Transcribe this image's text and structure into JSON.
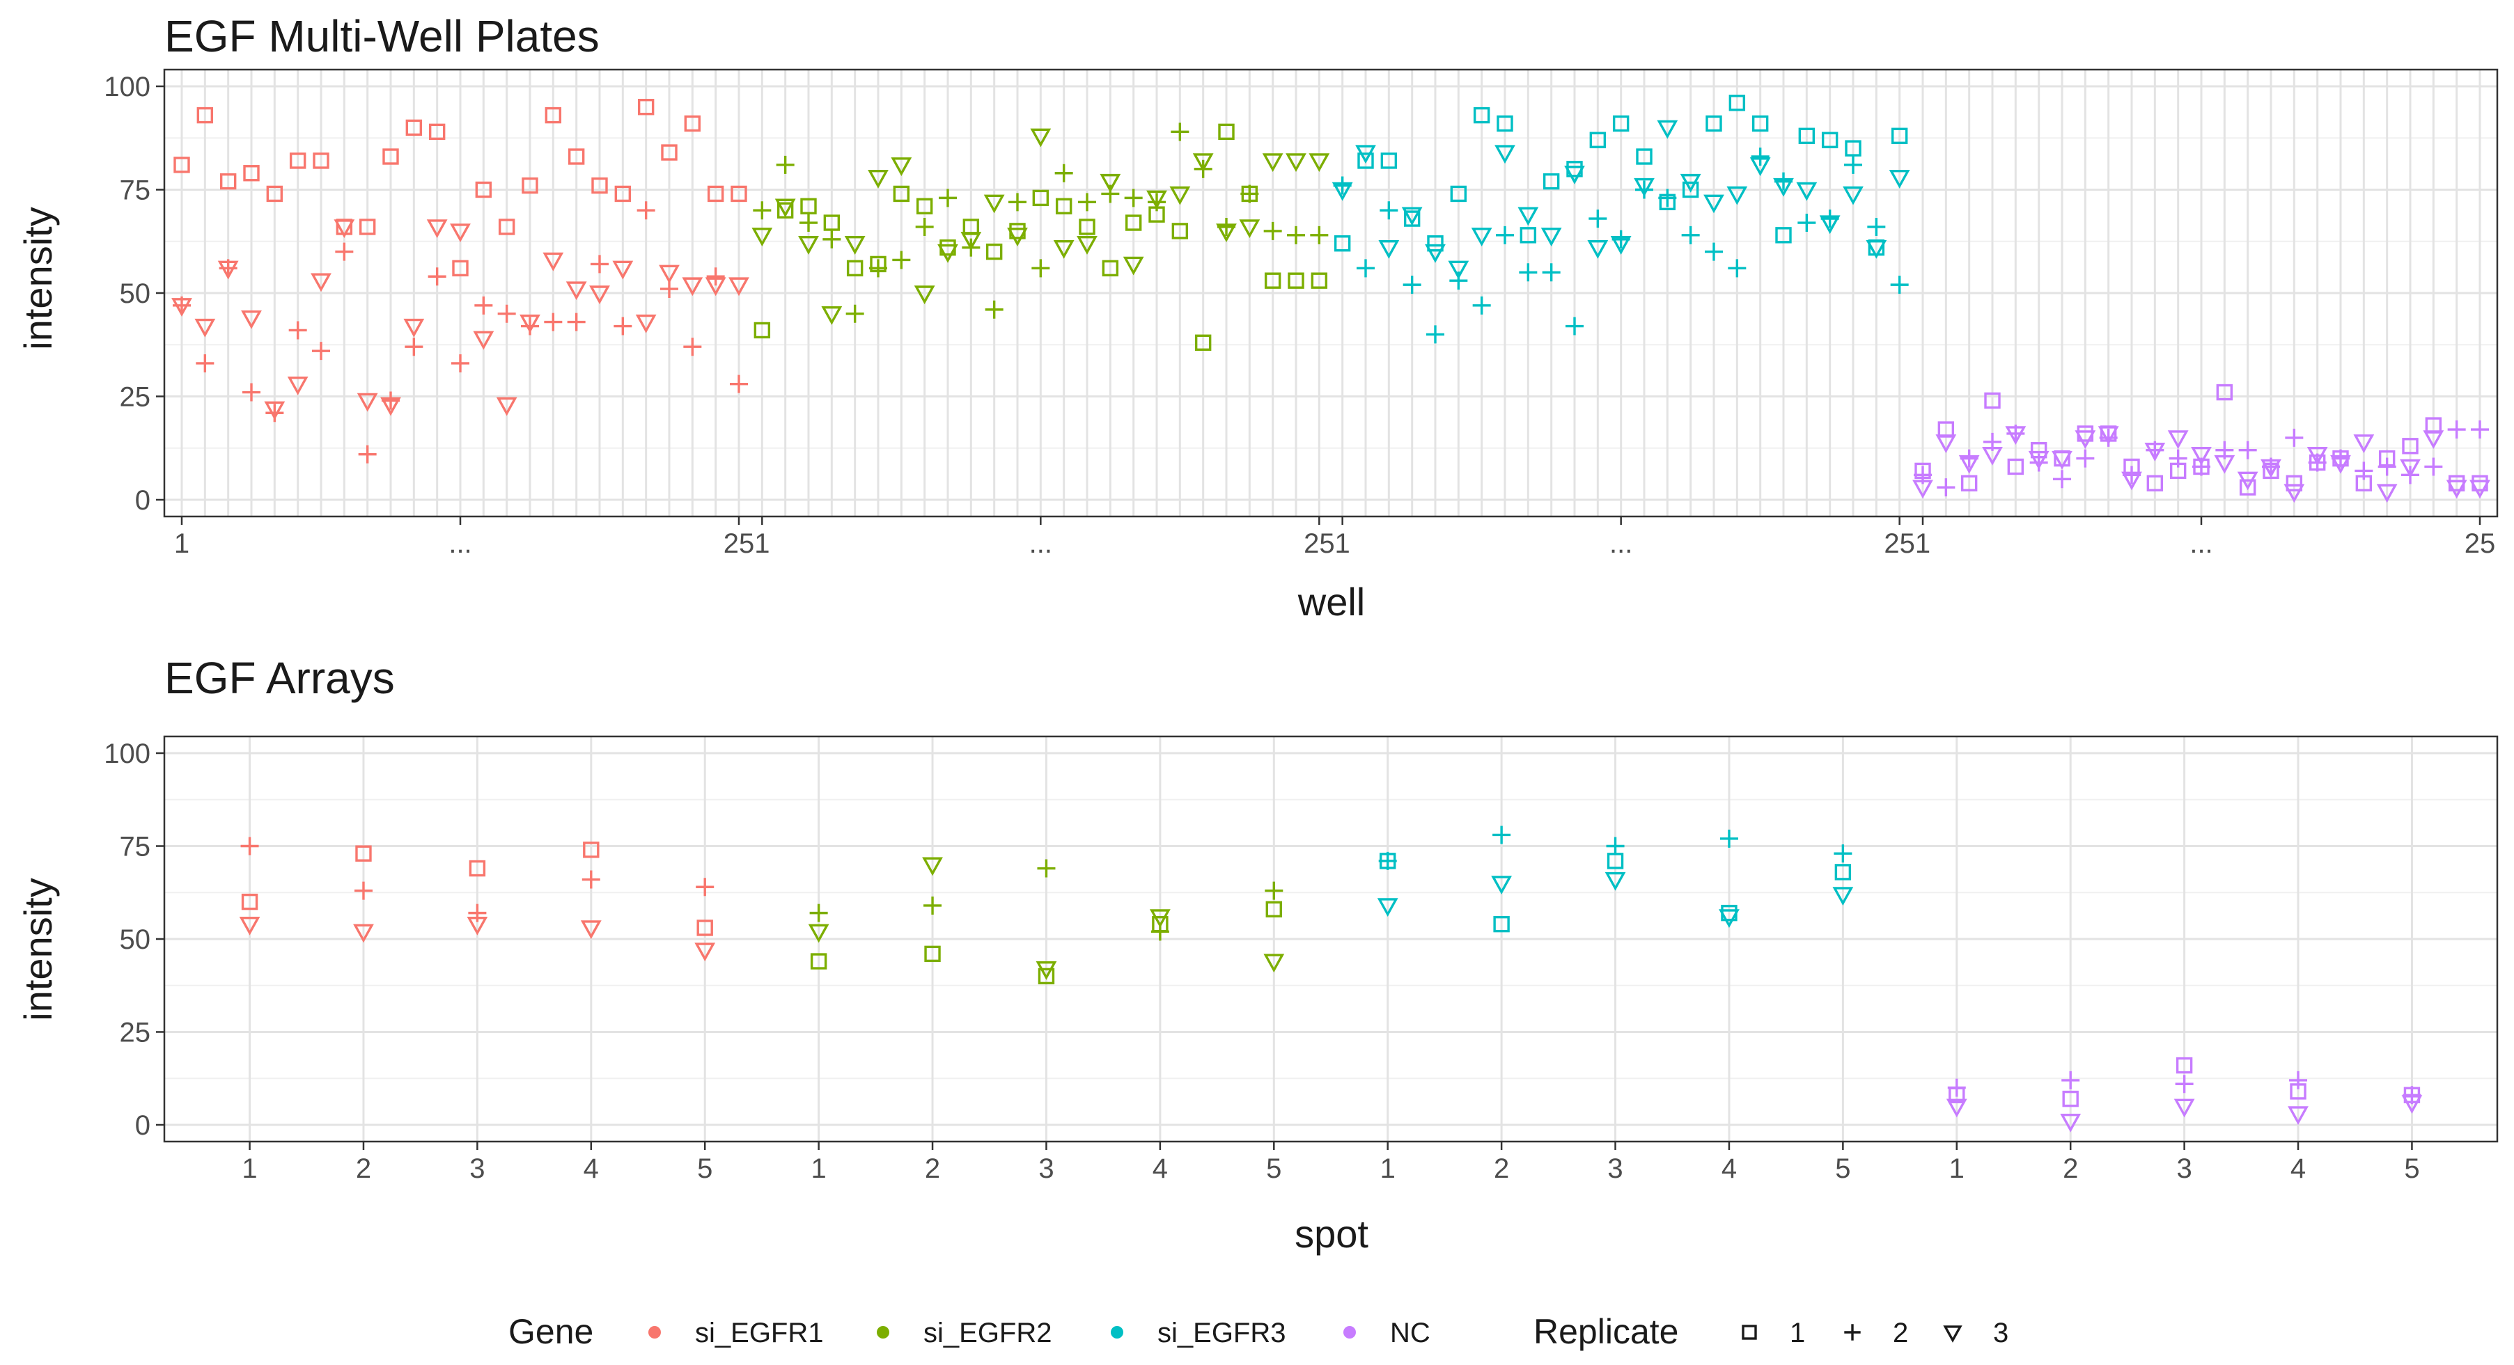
{
  "colors": {
    "si_EGFR1": "#F8766D",
    "si_EGFR2": "#7CAE00",
    "si_EGFR3": "#00BFC4",
    "NC": "#C77CFF"
  },
  "legend": {
    "gene_title": "Gene",
    "genes": [
      "si_EGFR1",
      "si_EGFR2",
      "si_EGFR3",
      "NC"
    ],
    "replicate_title": "Replicate",
    "replicates": [
      "1",
      "2",
      "3"
    ],
    "shapes": [
      "square-icon",
      "plus-icon",
      "triangle-down-icon"
    ]
  },
  "chart_data": [
    {
      "type": "scatter",
      "title": "EGF Multi-Well Plates",
      "xlabel": "well",
      "ylabel": "intensity",
      "ylim": [
        0,
        100
      ],
      "yticks": [
        "0",
        "25",
        "50",
        "75",
        "100"
      ],
      "xticks": [
        "1",
        "...",
        "25",
        "1",
        "...",
        "25",
        "1",
        "...",
        "25",
        "1",
        "...",
        "25"
      ],
      "wells_per_gene": 25,
      "groups": [
        "si_EGFR1",
        "si_EGFR2",
        "si_EGFR3",
        "NC"
      ],
      "series": [
        {
          "gene": "si_EGFR1",
          "replicate": "1",
          "values": [
            81,
            93,
            77,
            79,
            74,
            82,
            82,
            66,
            66,
            83,
            90,
            89,
            56,
            75,
            66,
            76,
            93,
            83,
            76,
            74,
            95,
            84,
            91,
            74,
            74
          ]
        },
        {
          "gene": "si_EGFR1",
          "replicate": "2",
          "values": [
            47,
            33,
            56,
            26,
            21,
            41,
            36,
            60,
            11,
            24,
            37,
            54,
            33,
            47,
            45,
            42,
            43,
            43,
            57,
            42,
            70,
            51,
            37,
            54,
            28
          ]
        },
        {
          "gene": "si_EGFR1",
          "replicate": "3",
          "values": [
            47,
            42,
            56,
            44,
            22,
            28,
            53,
            66,
            24,
            23,
            42,
            66,
            65,
            39,
            23,
            43,
            58,
            51,
            50,
            56,
            43,
            55,
            52,
            52,
            52
          ]
        },
        {
          "gene": "si_EGFR2",
          "replicate": "1",
          "values": [
            41,
            70,
            71,
            67,
            56,
            57,
            74,
            71,
            61,
            66,
            60,
            65,
            73,
            71,
            66,
            56,
            67,
            69,
            65,
            38,
            89,
            74,
            53,
            53,
            53
          ]
        },
        {
          "gene": "si_EGFR2",
          "replicate": "2",
          "values": [
            70,
            81,
            67,
            63,
            45,
            56,
            58,
            66,
            73,
            61,
            46,
            72,
            56,
            79,
            72,
            74,
            73,
            72,
            89,
            80,
            66,
            74,
            65,
            64,
            64
          ]
        },
        {
          "gene": "si_EGFR2",
          "replicate": "3",
          "values": [
            64,
            71,
            62,
            45,
            62,
            78,
            81,
            50,
            60,
            63,
            72,
            64,
            88,
            61,
            62,
            77,
            57,
            73,
            74,
            82,
            65,
            66,
            82,
            82,
            82
          ]
        },
        {
          "gene": "si_EGFR3",
          "replicate": "1",
          "values": [
            62,
            82,
            82,
            68,
            62,
            74,
            93,
            91,
            64,
            77,
            80,
            87,
            91,
            83,
            72,
            75,
            91,
            96,
            91,
            64,
            88,
            87,
            85,
            61,
            88
          ]
        },
        {
          "gene": "si_EGFR3",
          "replicate": "2",
          "values": [
            76,
            56,
            70,
            52,
            40,
            53,
            47,
            64,
            55,
            55,
            42,
            68,
            63,
            75,
            73,
            64,
            60,
            56,
            83,
            77,
            67,
            68,
            81,
            66,
            52
          ]
        },
        {
          "gene": "si_EGFR3",
          "replicate": "3",
          "values": [
            75,
            84,
            61,
            69,
            60,
            56,
            64,
            84,
            69,
            64,
            79,
            61,
            62,
            76,
            90,
            77,
            72,
            74,
            81,
            76,
            75,
            67,
            74,
            61,
            78
          ]
        },
        {
          "gene": "NC",
          "replicate": "1",
          "values": [
            7,
            17,
            4,
            24,
            8,
            12,
            10,
            16,
            16,
            8,
            4,
            7,
            8,
            26,
            3,
            7,
            4,
            9,
            10,
            4,
            10,
            13,
            18,
            4,
            4
          ]
        },
        {
          "gene": "NC",
          "replicate": "2",
          "values": [
            6,
            3,
            10,
            14,
            16,
            9,
            5,
            10,
            15,
            6,
            12,
            10,
            8,
            12,
            12,
            8,
            15,
            9,
            10,
            7,
            8,
            6,
            8,
            17,
            17
          ]
        },
        {
          "gene": "NC",
          "replicate": "3",
          "values": [
            3,
            14,
            9,
            11,
            16,
            10,
            10,
            15,
            16,
            5,
            12,
            15,
            11,
            9,
            5,
            8,
            2,
            11,
            9,
            14,
            2,
            8,
            15,
            3,
            3
          ]
        }
      ]
    },
    {
      "type": "scatter",
      "title": "EGF Arrays",
      "xlabel": "spot",
      "ylabel": "intensity",
      "ylim": [
        0,
        100
      ],
      "yticks": [
        "0",
        "25",
        "50",
        "75",
        "100"
      ],
      "xticks": [
        "1",
        "2",
        "3",
        "4",
        "5",
        "1",
        "2",
        "3",
        "4",
        "5",
        "1",
        "2",
        "3",
        "4",
        "5",
        "1",
        "2",
        "3",
        "4",
        "5"
      ],
      "spots_per_gene": 5,
      "groups": [
        "si_EGFR1",
        "si_EGFR2",
        "si_EGFR3",
        "NC"
      ],
      "series": [
        {
          "gene": "si_EGFR1",
          "replicate": "1",
          "values": [
            60,
            73,
            69,
            74,
            53
          ]
        },
        {
          "gene": "si_EGFR1",
          "replicate": "2",
          "values": [
            75,
            63,
            57,
            66,
            64
          ]
        },
        {
          "gene": "si_EGFR1",
          "replicate": "3",
          "values": [
            54,
            52,
            54,
            53,
            47
          ]
        },
        {
          "gene": "si_EGFR2",
          "replicate": "1",
          "values": [
            44,
            46,
            40,
            54,
            58
          ]
        },
        {
          "gene": "si_EGFR2",
          "replicate": "2",
          "values": [
            57,
            59,
            69,
            52,
            63
          ]
        },
        {
          "gene": "si_EGFR2",
          "replicate": "3",
          "values": [
            52,
            70,
            42,
            56,
            44
          ]
        },
        {
          "gene": "si_EGFR3",
          "replicate": "1",
          "values": [
            71,
            54,
            71,
            57,
            68
          ]
        },
        {
          "gene": "si_EGFR3",
          "replicate": "2",
          "values": [
            71,
            78,
            75,
            77,
            73
          ]
        },
        {
          "gene": "si_EGFR3",
          "replicate": "3",
          "values": [
            59,
            65,
            66,
            56,
            62
          ]
        },
        {
          "gene": "NC",
          "replicate": "1",
          "values": [
            8,
            7,
            16,
            9,
            8
          ]
        },
        {
          "gene": "NC",
          "replicate": "2",
          "values": [
            10,
            12,
            11,
            12,
            8
          ]
        },
        {
          "gene": "NC",
          "replicate": "3",
          "values": [
            5,
            1,
            5,
            3,
            6
          ]
        }
      ]
    }
  ]
}
